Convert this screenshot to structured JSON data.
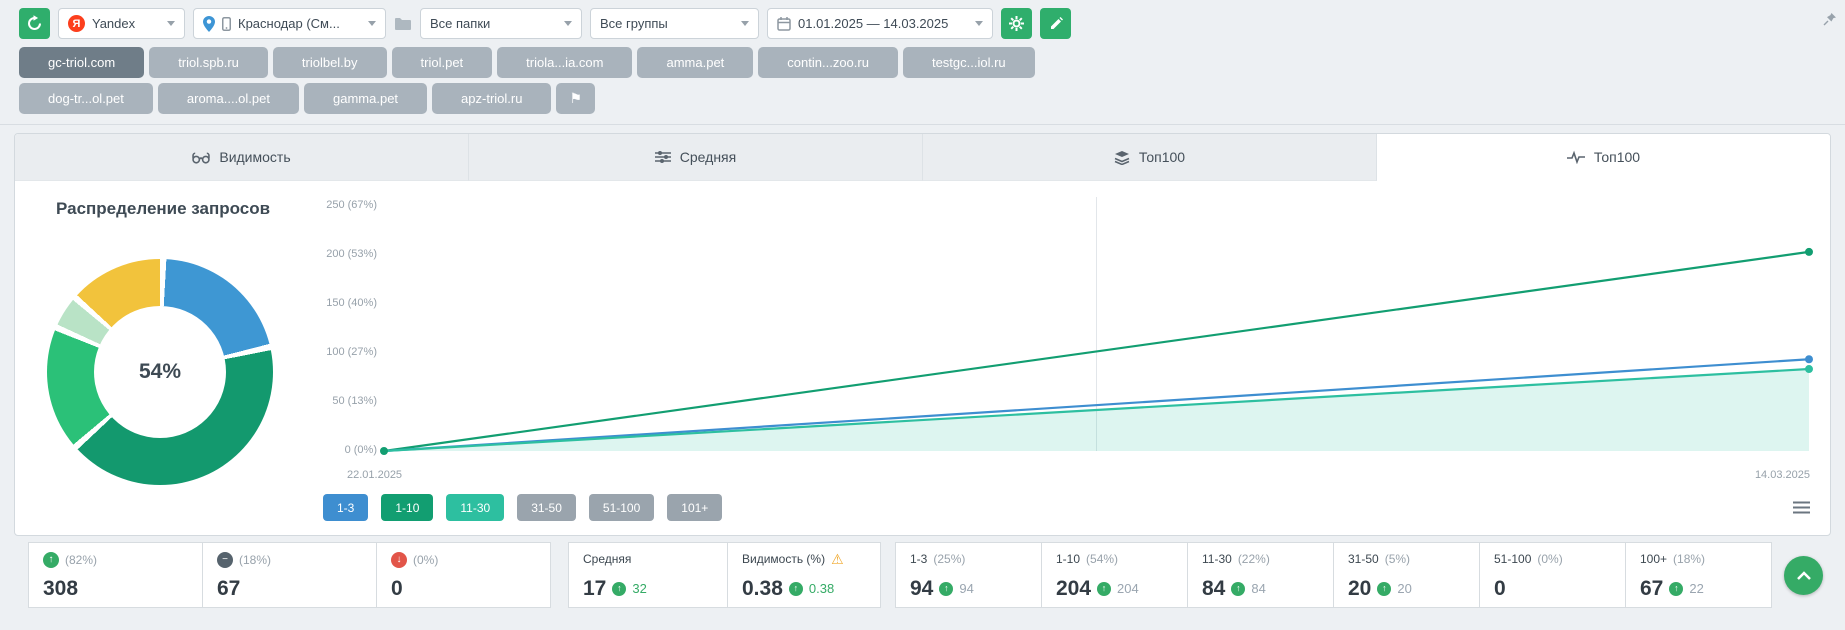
{
  "icons": {
    "up_arrow": "↑",
    "down_arrow": "↓",
    "minus": "−",
    "warning": "⚠",
    "flag": "⚑"
  },
  "toolbar": {
    "yandex_logo": "Я",
    "search_engine": "Yandex",
    "region": "Краснодар (См...",
    "folders": "Все папки",
    "groups": "Все группы",
    "date_range": "01.01.2025 — 14.03.2025"
  },
  "domains": {
    "row1": [
      "gc-triol.com",
      "triol.spb.ru",
      "triolbel.by",
      "triol.pet",
      "triola...ia.com",
      "amma.pet",
      "contin...zoo.ru",
      "testgc...iol.ru"
    ],
    "row2": [
      "dog-tr...ol.pet",
      "aroma....ol.pet",
      "gamma.pet",
      "apz-triol.ru"
    ]
  },
  "tabs": [
    "Видимость",
    "Средняя",
    "Топ100",
    "Топ100"
  ],
  "chart_data": [
    {
      "type": "line",
      "title": "Топ100",
      "x": [
        "22.01.2025",
        "14.03.2025"
      ],
      "ylim": [
        0,
        250
      ],
      "yticks": [
        "0 (0%)",
        "50 (13%)",
        "100 (27%)",
        "150 (40%)",
        "200 (53%)",
        "250 (67%)"
      ],
      "grid": "single-vertical-midline",
      "series": [
        {
          "name": "1-10",
          "color": "#129e71",
          "values": [
            0,
            204
          ]
        },
        {
          "name": "1-3",
          "color": "#3e8ed0",
          "values": [
            0,
            94
          ]
        },
        {
          "name": "11-30",
          "color": "#2dbfa0",
          "values": [
            0,
            84
          ],
          "area": true
        }
      ],
      "legend": [
        {
          "label": "1-3",
          "color": "#3e8ed0",
          "active": true
        },
        {
          "label": "1-10",
          "color": "#129e71",
          "active": true
        },
        {
          "label": "11-30",
          "color": "#2dbfa0",
          "active": true
        },
        {
          "label": "31-50",
          "color": "#9aa4ad",
          "active": false
        },
        {
          "label": "51-100",
          "color": "#9aa4ad",
          "active": false
        },
        {
          "label": "101+",
          "color": "#9aa4ad",
          "active": false
        }
      ]
    },
    {
      "type": "pie",
      "title": "Распределение запросов",
      "center_label": "54%",
      "segments": [
        {
          "name": "1-3",
          "color": "#3e97d3",
          "pct": 21
        },
        {
          "name": "1-10",
          "color": "#13996e",
          "pct": 42
        },
        {
          "name": "11-30",
          "color": "#2bc178",
          "pct": 18
        },
        {
          "name": "31-50",
          "color": "#b9e3c6",
          "pct": 5
        },
        {
          "name": "100+",
          "color": "#f2c33c",
          "pct": 14
        }
      ]
    }
  ],
  "stats": {
    "summary": [
      {
        "icon": "up",
        "pct": "(82%)",
        "value": "308"
      },
      {
        "icon": "minus",
        "pct": "(18%)",
        "value": "67"
      },
      {
        "icon": "down",
        "pct": "(0%)",
        "value": "0"
      }
    ],
    "metrics": [
      {
        "label": "Средняя",
        "value": "17",
        "delta": "32"
      },
      {
        "label": "Видимость (%)",
        "warning": true,
        "value": "0.38",
        "delta": "0.38"
      }
    ],
    "ranges": [
      {
        "label": "1-3",
        "pct": "(25%)",
        "value": "94",
        "delta": "94"
      },
      {
        "label": "1-10",
        "pct": "(54%)",
        "value": "204",
        "delta": "204"
      },
      {
        "label": "11-30",
        "pct": "(22%)",
        "value": "84",
        "delta": "84"
      },
      {
        "label": "31-50",
        "pct": "(5%)",
        "value": "20",
        "delta": "20"
      },
      {
        "label": "51-100",
        "pct": "(0%)",
        "value": "0",
        "delta": ""
      },
      {
        "label": "100+",
        "pct": "(18%)",
        "value": "67",
        "delta": "22"
      }
    ]
  }
}
